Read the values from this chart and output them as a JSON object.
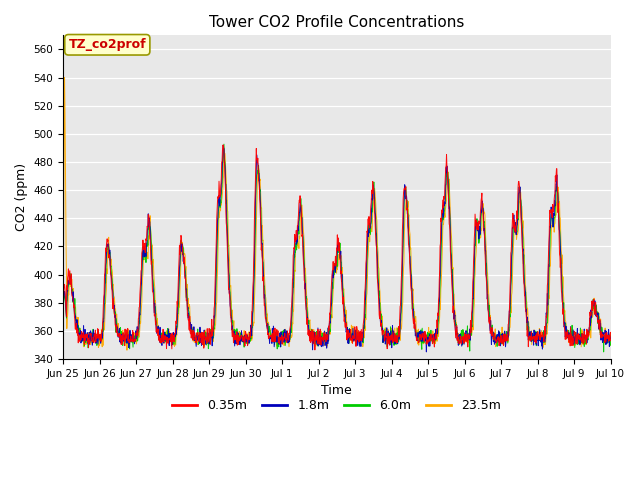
{
  "title": "Tower CO2 Profile Concentrations",
  "xlabel": "Time",
  "ylabel": "CO2 (ppm)",
  "ylim": [
    340,
    570
  ],
  "yticks": [
    340,
    360,
    380,
    400,
    420,
    440,
    460,
    480,
    500,
    520,
    540,
    560
  ],
  "series_labels": [
    "0.35m",
    "1.8m",
    "6.0m",
    "23.5m"
  ],
  "series_colors": [
    "#ff0000",
    "#0000bb",
    "#00cc00",
    "#ffaa00"
  ],
  "annotation_text": "TZ_co2prof",
  "annotation_color": "#cc0000",
  "annotation_bg": "#ffffcc",
  "annotation_edge": "#999900",
  "bg_color": "#e8e8e8",
  "legend_linewidth": 2,
  "n_days": 15,
  "pts_per_day": 96,
  "seed": 12345
}
